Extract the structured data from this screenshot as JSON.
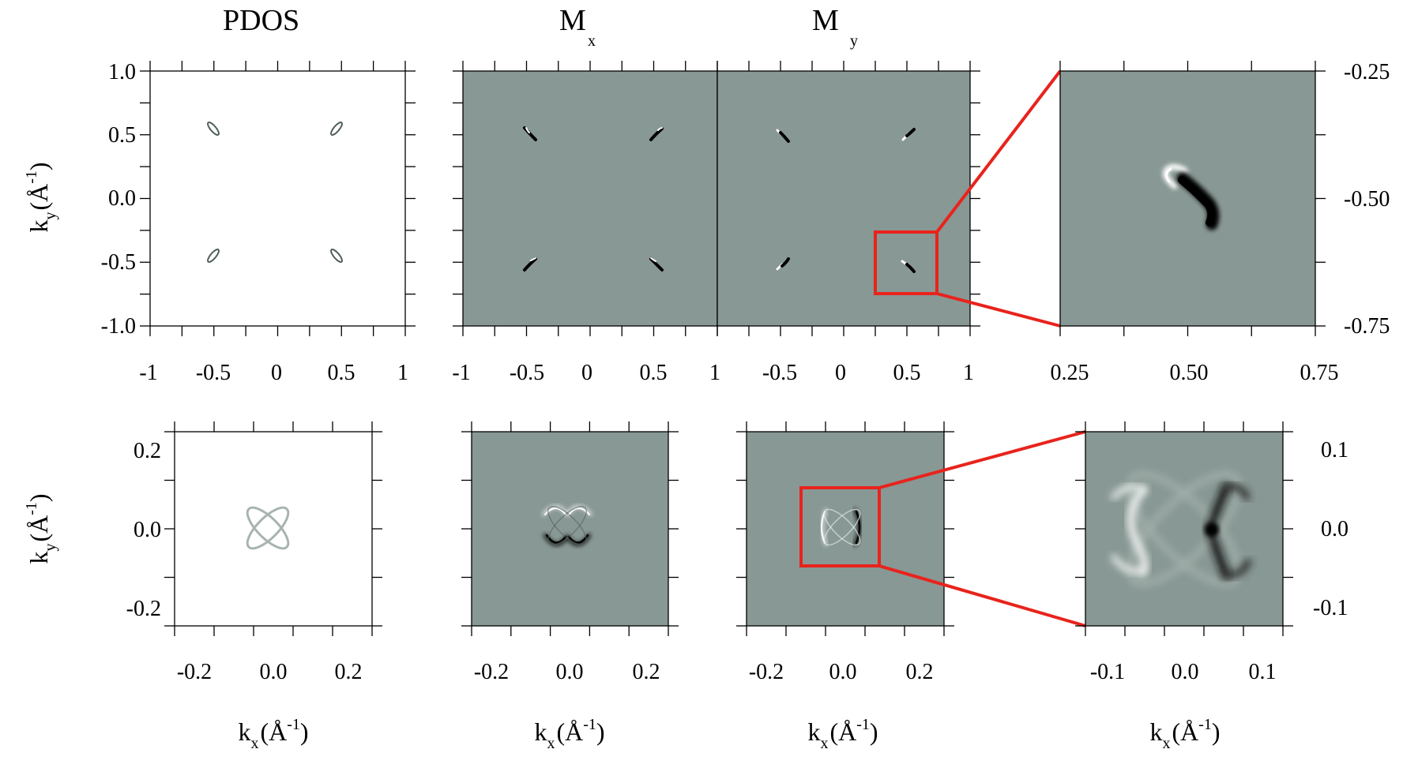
{
  "titles": {
    "pdos": "PDOS",
    "mx_main": "M",
    "mx_sub": "x",
    "my_main": "M",
    "my_sub": "y"
  },
  "axis_labels": {
    "x_main": "k",
    "x_sub": "x",
    "y_main": "k",
    "y_sub": "y",
    "unit_open": "(Å",
    "unit_exp": "-1",
    "unit_close": ")"
  },
  "colors": {
    "map_background": "#889894",
    "positive": "#ffffff",
    "negative": "#000000",
    "pdos_contour": "#4c5e5a",
    "zoom_box": "#e8231c"
  },
  "chart_data": [
    {
      "type": "heatmap",
      "panel": "top-PDOS",
      "title": "PDOS",
      "xlim": [
        -1,
        1
      ],
      "ylim": [
        -1,
        1
      ],
      "xticks": [
        "-1",
        "-0.5",
        "0",
        "0.5",
        "1"
      ],
      "yticks": [
        "1.0",
        "0.5",
        "0.0",
        "-0.5",
        "-1.0"
      ],
      "ylabel": "k_y (Å^-1)",
      "features": [
        {
          "kx": -0.5,
          "ky": 0.54
        },
        {
          "kx": 0.5,
          "ky": 0.54
        },
        {
          "kx": -0.5,
          "ky": -0.46
        },
        {
          "kx": 0.5,
          "ky": -0.46
        }
      ]
    },
    {
      "type": "heatmap",
      "panel": "top-Mx",
      "title": "Mx",
      "xlim": [
        -1,
        1
      ],
      "ylim": [
        -1,
        1
      ],
      "xticks": [
        "-1",
        "-0.5",
        "0",
        "0.5",
        "1"
      ],
      "features": [
        {
          "kx": -0.47,
          "ky": 0.5
        },
        {
          "kx": 0.55,
          "ky": 0.5
        },
        {
          "kx": -0.45,
          "ky": -0.5
        },
        {
          "kx": 0.55,
          "ky": -0.5
        }
      ]
    },
    {
      "type": "heatmap",
      "panel": "top-My",
      "title": "My",
      "xlim": [
        -1,
        1
      ],
      "ylim": [
        -1,
        1
      ],
      "xticks": [
        "-0.5",
        "0",
        "0.5",
        "1"
      ],
      "zoom_box": {
        "xlim": [
          0.25,
          0.75
        ],
        "ylim": [
          -0.75,
          -0.25
        ]
      },
      "features": [
        {
          "kx": -0.47,
          "ky": 0.5
        },
        {
          "kx": 0.55,
          "ky": 0.5
        },
        {
          "kx": -0.45,
          "ky": -0.5
        },
        {
          "kx": 0.55,
          "ky": -0.5
        }
      ]
    },
    {
      "type": "heatmap",
      "panel": "top-zoom",
      "xlim": [
        0.25,
        0.75
      ],
      "ylim": [
        -0.75,
        -0.25
      ],
      "xticks": [
        "0.25",
        "0.50",
        "0.75"
      ],
      "yticks_right": [
        "-0.25",
        "-0.50",
        "-0.75"
      ],
      "features": [
        {
          "kx": 0.5,
          "ky": -0.5
        }
      ]
    },
    {
      "type": "heatmap",
      "panel": "bottom-PDOS",
      "xlim": [
        -0.25,
        0.25
      ],
      "ylim": [
        -0.25,
        0.25
      ],
      "xticks": [
        "-0.2",
        "0.0",
        "0.2"
      ],
      "yticks": [
        "0.2",
        "0.0",
        "-0.2"
      ],
      "xlabel": "k_x (Å^-1)",
      "ylabel": "k_y (Å^-1)",
      "features": [
        {
          "kx": 0.0,
          "ky": 0.0,
          "shape": "two crossed ellipses"
        }
      ]
    },
    {
      "type": "heatmap",
      "panel": "bottom-Mx",
      "xlim": [
        -0.25,
        0.25
      ],
      "ylim": [
        -0.25,
        0.25
      ],
      "xticks": [
        "-0.2",
        "0.0",
        "0.2"
      ],
      "xlabel": "k_x (Å^-1)",
      "features": [
        {
          "kx": 0.0,
          "ky": 0.0,
          "shape": "two crossed ellipses"
        }
      ]
    },
    {
      "type": "heatmap",
      "panel": "bottom-My",
      "xlim": [
        -0.25,
        0.25
      ],
      "ylim": [
        -0.25,
        0.25
      ],
      "xticks": [
        "-0.2",
        "0.0",
        "0.2"
      ],
      "xlabel": "k_x (Å^-1)",
      "zoom_box": {
        "xlim": [
          -0.1,
          0.1
        ],
        "ylim": [
          -0.1,
          0.1
        ]
      },
      "features": [
        {
          "kx": 0.0,
          "ky": 0.0,
          "shape": "two crossed ellipses"
        }
      ]
    },
    {
      "type": "heatmap",
      "panel": "bottom-zoom",
      "xlim": [
        -0.125,
        0.125
      ],
      "ylim": [
        -0.125,
        0.125
      ],
      "xticks": [
        "-0.1",
        "0.0",
        "0.1"
      ],
      "yticks_right": [
        "0.1",
        "0.0",
        "-0.1"
      ],
      "xlabel": "k_x (Å^-1)",
      "features": [
        {
          "kx": 0.0,
          "ky": 0.0,
          "shape": "two crossed ellipses"
        }
      ]
    }
  ]
}
